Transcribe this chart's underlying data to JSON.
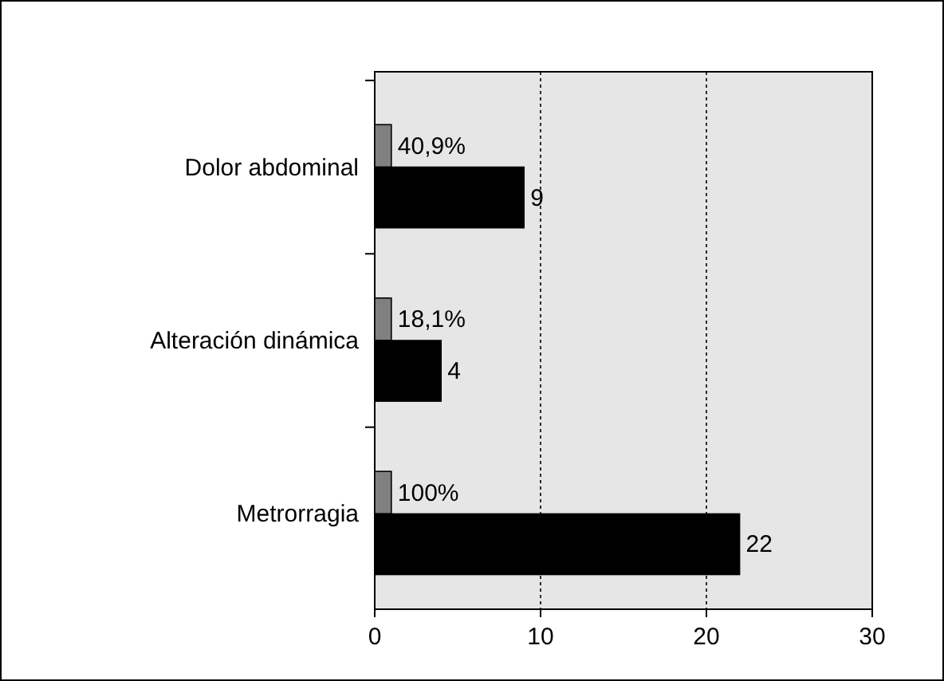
{
  "chart_data": {
    "type": "bar",
    "orientation": "horizontal",
    "categories": [
      "Dolor abdominal",
      "Alteración dinámica",
      "Metrorragia"
    ],
    "series": [
      {
        "color": "#808080",
        "values": [
          1,
          1,
          1
        ]
      },
      {
        "color": "#000000",
        "values": [
          9,
          4,
          22
        ],
        "value_labels": [
          "9",
          "4",
          "22"
        ]
      }
    ],
    "annotations": [
      {
        "text": "40,9%",
        "y": "Dolor abdominal"
      },
      {
        "text": "18,1%",
        "y": "Alteración dinámica"
      },
      {
        "text": "100%",
        "y": "Metrorragia"
      }
    ],
    "xlim": [
      0,
      30
    ],
    "xticks": [
      0,
      10,
      20,
      30
    ],
    "grid": "x"
  }
}
